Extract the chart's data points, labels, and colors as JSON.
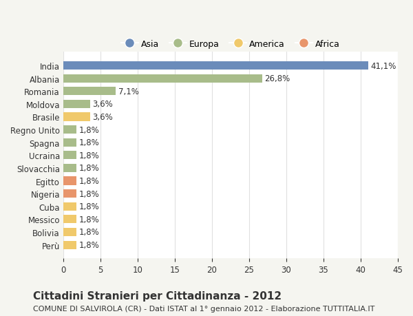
{
  "countries": [
    "India",
    "Albania",
    "Romania",
    "Moldova",
    "Brasile",
    "Regno Unito",
    "Spagna",
    "Ucraina",
    "Slovacchia",
    "Egitto",
    "Nigeria",
    "Cuba",
    "Messico",
    "Bolivia",
    "Perù"
  ],
  "values": [
    41.1,
    26.8,
    7.1,
    3.6,
    3.6,
    1.8,
    1.8,
    1.8,
    1.8,
    1.8,
    1.8,
    1.8,
    1.8,
    1.8,
    1.8
  ],
  "continents": [
    "Asia",
    "Europa",
    "Europa",
    "Europa",
    "America",
    "Europa",
    "Europa",
    "Europa",
    "Europa",
    "Africa",
    "Africa",
    "America",
    "America",
    "America",
    "America"
  ],
  "continent_colors": {
    "Asia": "#6b8cba",
    "Europa": "#a8bc8a",
    "America": "#f0c96b",
    "Africa": "#e8956b"
  },
  "legend_order": [
    "Asia",
    "Europa",
    "America",
    "Africa"
  ],
  "title": "Cittadini Stranieri per Cittadinanza - 2012",
  "subtitle": "COMUNE DI SALVIROLA (CR) - Dati ISTAT al 1° gennaio 2012 - Elaborazione TUTTITALIA.IT",
  "xlim": [
    0,
    45
  ],
  "xticks": [
    0,
    5,
    10,
    15,
    20,
    25,
    30,
    35,
    40,
    45
  ],
  "background_color": "#f5f5f0",
  "bar_background": "#ffffff",
  "grid_color": "#e0e0e0",
  "text_color": "#333333",
  "label_fontsize": 8.5,
  "tick_fontsize": 8.5,
  "title_fontsize": 11,
  "subtitle_fontsize": 8
}
